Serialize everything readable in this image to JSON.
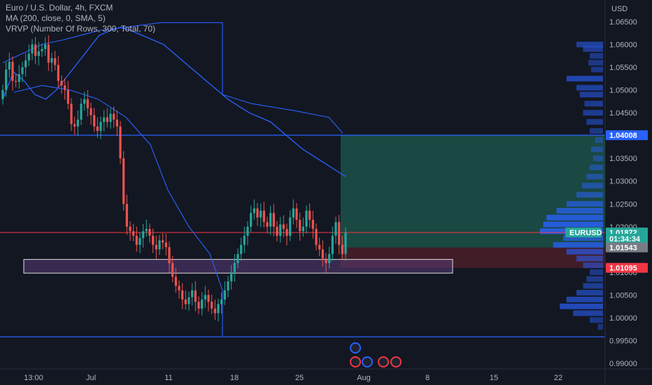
{
  "legend": {
    "title": "Euro / U.S. Dollar, 4h, FXCM",
    "ma": "MA (200, close, 0, SMA, 5)",
    "vrvp": "VRVP (Number Of Rows, 300, Total, 70)"
  },
  "colors": {
    "background": "#131722",
    "up": "#26a69a",
    "down": "#ef5350",
    "blue": "#2962ff",
    "red_line": "#f23645",
    "profit_zone": "#1e5a4d",
    "loss_zone": "#4a1e28",
    "highlight_box": "#5a3a78"
  },
  "chart_data": {
    "type": "candlestick",
    "currency_label": "USD",
    "y_ticks": [
      "1.06500",
      "1.06000",
      "1.05500",
      "1.05000",
      "1.04500",
      "1.04000",
      "1.03500",
      "1.03000",
      "1.02500",
      "1.02000",
      "1.01500",
      "1.01000",
      "1.00500",
      "1.00000",
      "0.99500",
      "0.99000"
    ],
    "x_ticks": [
      "13:00",
      "Jul",
      "11",
      "18",
      "25",
      "Aug",
      "8",
      "15",
      "22"
    ],
    "ylim": [
      0.989,
      1.0655
    ],
    "horizontal_lines": [
      1.04008,
      0.9958
    ],
    "current_line": 1.01872,
    "symbol_tag": "EURUSD",
    "price_tags": [
      {
        "value": "1.04008",
        "price": 1.04008,
        "bg": "#2962ff",
        "fg": "#ffffff"
      },
      {
        "value": "1.01872",
        "price": 1.01872,
        "bg": "#26a69a",
        "fg": "#ffffff"
      },
      {
        "value": "01:34:34",
        "price": 1.01735,
        "bg": "#26a69a",
        "fg": "#ffffff"
      },
      {
        "value": "1.01543",
        "price": 1.01543,
        "bg": "#787b86",
        "fg": "#ffffff"
      },
      {
        "value": "1.01095",
        "price": 1.01095,
        "bg": "#f23645",
        "fg": "#ffffff"
      }
    ],
    "position": {
      "entry": 1.01543,
      "target": 1.04008,
      "stop": 1.01095
    },
    "zone_box": {
      "top": 1.0128,
      "bottom": 1.0098
    },
    "closes": [
      1.05,
      1.0545,
      1.0562,
      1.052,
      1.0518,
      1.0535,
      1.055,
      1.0565,
      1.058,
      1.06,
      1.0575,
      1.0585,
      1.059,
      1.06,
      1.056,
      1.057,
      1.0555,
      1.052,
      1.051,
      1.05,
      1.047,
      1.0425,
      1.042,
      1.0435,
      1.047,
      1.048,
      1.046,
      1.0445,
      1.042,
      1.041,
      1.043,
      1.044,
      1.043,
      1.0448,
      1.0435,
      1.042,
      1.035,
      1.025,
      1.02,
      1.019,
      1.018,
      1.016,
      1.0175,
      1.019,
      1.0195,
      1.018,
      1.016,
      1.015,
      1.017,
      1.0165,
      1.0155,
      1.012,
      1.009,
      1.007,
      1.006,
      1.004,
      1.003,
      1.0045,
      1.006,
      1.0035,
      1.002,
      1.004,
      1.005,
      1.0035,
      1.002,
      1.001,
      1.003,
      1.004,
      1.006,
      1.008,
      1.01,
      1.012,
      1.014,
      1.016,
      1.018,
      1.02,
      1.023,
      1.024,
      1.022,
      1.0235,
      1.021,
      1.02,
      1.023,
      1.02,
      1.018,
      1.0205,
      1.0195,
      1.018,
      1.022,
      1.024,
      1.0215,
      1.019,
      1.02,
      1.0235,
      1.0215,
      1.0195,
      1.016,
      1.015,
      1.013,
      1.012,
      1.014,
      1.018,
      1.021,
      1.016,
      1.014,
      1.0187
    ],
    "ma_values": [
      1.048,
      1.054,
      1.052,
      1.049,
      1.048,
      1.05,
      1.053,
      1.056,
      1.059,
      1.062,
      1.063,
      1.0638,
      1.063,
      1.062,
      1.061,
      1.06,
      1.058,
      1.056,
      1.054,
      1.052,
      1.05,
      1.048,
      1.0465,
      1.045,
      1.044,
      1.043,
      1.041,
      1.039,
      1.037,
      1.0355,
      1.034,
      1.0325,
      1.031
    ],
    "volume_profile": [
      {
        "p": 1.06,
        "w": 0.4
      },
      {
        "p": 1.059,
        "w": 0.3
      },
      {
        "p": 1.0575,
        "w": 0.2
      },
      {
        "p": 1.056,
        "w": 0.22
      },
      {
        "p": 1.0545,
        "w": 0.18
      },
      {
        "p": 1.0525,
        "w": 0.55
      },
      {
        "p": 1.0505,
        "w": 0.4
      },
      {
        "p": 1.049,
        "w": 0.35
      },
      {
        "p": 1.047,
        "w": 0.28
      },
      {
        "p": 1.045,
        "w": 0.3
      },
      {
        "p": 1.043,
        "w": 0.25
      },
      {
        "p": 1.041,
        "w": 0.2
      },
      {
        "p": 1.039,
        "w": 0.12
      },
      {
        "p": 1.037,
        "w": 0.18
      },
      {
        "p": 1.035,
        "w": 0.15
      },
      {
        "p": 1.033,
        "w": 0.2
      },
      {
        "p": 1.031,
        "w": 0.25
      },
      {
        "p": 1.029,
        "w": 0.32
      },
      {
        "p": 1.027,
        "w": 0.4
      },
      {
        "p": 1.025,
        "w": 0.55
      },
      {
        "p": 1.0235,
        "w": 0.7
      },
      {
        "p": 1.022,
        "w": 0.85
      },
      {
        "p": 1.0205,
        "w": 0.9
      },
      {
        "p": 1.019,
        "w": 0.95
      },
      {
        "p": 1.0175,
        "w": 0.6
      },
      {
        "p": 1.016,
        "w": 0.75
      },
      {
        "p": 1.0145,
        "w": 0.55
      },
      {
        "p": 1.013,
        "w": 0.4
      },
      {
        "p": 1.0115,
        "w": 0.3
      },
      {
        "p": 1.01,
        "w": 0.2
      },
      {
        "p": 1.0085,
        "w": 0.25
      },
      {
        "p": 1.007,
        "w": 0.3
      },
      {
        "p": 1.0055,
        "w": 0.4
      },
      {
        "p": 1.004,
        "w": 0.55
      },
      {
        "p": 1.0025,
        "w": 0.65
      },
      {
        "p": 1.001,
        "w": 0.45
      },
      {
        "p": 0.9995,
        "w": 0.2
      },
      {
        "p": 0.998,
        "w": 0.08
      }
    ]
  }
}
